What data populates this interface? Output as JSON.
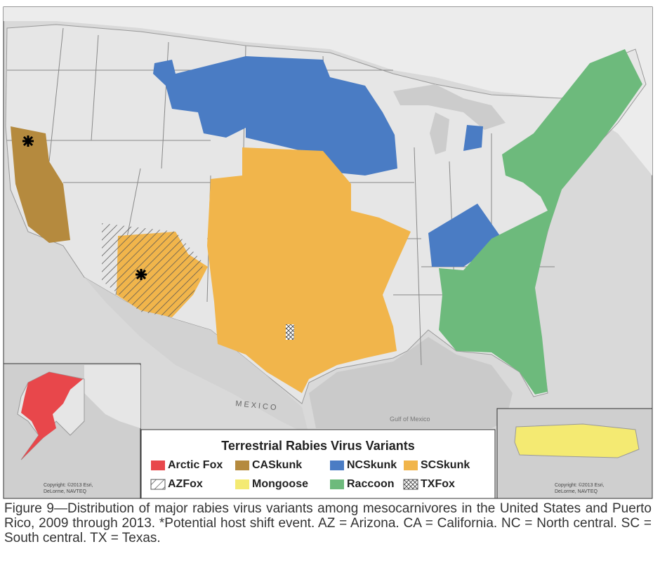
{
  "map": {
    "labels": {
      "mexico": "MEXICO",
      "gulf": "Gulf of Mexico"
    },
    "copyright_left": [
      "Copyright: ©2013 Esri,",
      "DeLorme, NAVTEQ"
    ],
    "copyright_right": [
      "Copyright: ©2013 Esri,",
      "DeLorme, NAVTEQ"
    ]
  },
  "legend": {
    "title": "Terrestrial Rabies Virus Variants",
    "items": [
      {
        "label": "Arctic Fox",
        "color": "#e8474b"
      },
      {
        "label": "CASkunk",
        "color": "#b58a3e"
      },
      {
        "label": "NCSkunk",
        "color": "#4a7cc4"
      },
      {
        "label": "SCSkunk",
        "color": "#f1b54b"
      },
      {
        "label": "AZFox",
        "color": "#555555",
        "pattern": "hatch"
      },
      {
        "label": "Mongoose",
        "color": "#f4ea72"
      },
      {
        "label": "Raccoon",
        "color": "#6dba7c"
      },
      {
        "label": "TXFox",
        "color": "#555555",
        "pattern": "cross"
      }
    ]
  },
  "caption": "Figure 9—Distribution of major rabies virus variants among mesocarnivores in the United States and Puerto Rico, 2009 through 2013. *Potential host shift event. AZ = Arizona. CA = California. NC = North central. SC = South central. TX = Texas."
}
